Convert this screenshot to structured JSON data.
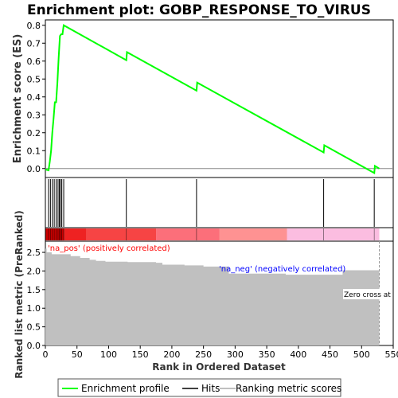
{
  "chart_data": {
    "type": "line",
    "title": "Enrichment plot: GOBP_RESPONSE_TO_VIRUS",
    "top_panel": {
      "ylabel": "Enrichment score (ES)",
      "ylim": [
        -0.05,
        0.83
      ],
      "yticks": [
        "0.0",
        "0.1",
        "0.2",
        "0.3",
        "0.4",
        "0.5",
        "0.6",
        "0.7",
        "0.8"
      ],
      "ytick_values": [
        0.0,
        0.1,
        0.2,
        0.3,
        0.4,
        0.5,
        0.6,
        0.7,
        0.8
      ],
      "series": [
        {
          "name": "Enrichment profile",
          "color": "#00ff00",
          "x": [
            0,
            5,
            7,
            9,
            11,
            13,
            15,
            17,
            19,
            21,
            23,
            25,
            27,
            29,
            128,
            129,
            239,
            240,
            440,
            441,
            520,
            521,
            528
          ],
          "y": [
            -0.005,
            -0.01,
            0.04,
            0.1,
            0.2,
            0.28,
            0.37,
            0.37,
            0.48,
            0.62,
            0.74,
            0.75,
            0.75,
            0.8,
            0.605,
            0.65,
            0.435,
            0.48,
            0.09,
            0.13,
            -0.025,
            0.015,
            0.0
          ]
        }
      ]
    },
    "hits_panel": {
      "hits": [
        5,
        8,
        11,
        14,
        17,
        20,
        22,
        24,
        26,
        29,
        128,
        239,
        440,
        520
      ]
    },
    "bottom_panel": {
      "ylabel": "Ranked list metric (PreRanked)",
      "xlabel": "Rank in Ordered Dataset",
      "ylim": [
        0,
        2.8
      ],
      "xlim": [
        0,
        550
      ],
      "yticks": [
        "0.0",
        "0.5",
        "1.0",
        "1.5",
        "2.0",
        "2.5"
      ],
      "ytick_values": [
        0.0,
        0.5,
        1.0,
        1.5,
        2.0,
        2.5
      ],
      "xticks": [
        "0",
        "50",
        "100",
        "150",
        "200",
        "250",
        "300",
        "350",
        "400",
        "450",
        "500",
        "550"
      ],
      "xtick_values": [
        0,
        50,
        100,
        150,
        200,
        250,
        300,
        350,
        400,
        450,
        500,
        550
      ],
      "metric_x": [
        0,
        2,
        10,
        30,
        40,
        55,
        70,
        80,
        95,
        130,
        175,
        185,
        220,
        250,
        290,
        380,
        440,
        470,
        528
      ],
      "metric_y": [
        2.6,
        2.5,
        2.45,
        2.45,
        2.4,
        2.35,
        2.3,
        2.27,
        2.25,
        2.24,
        2.22,
        2.17,
        2.15,
        2.12,
        1.93,
        1.9,
        1.9,
        2.02,
        2.02
      ],
      "fill_color": "#c0c0c0",
      "pos_label": "'na_pos' (positively correlated)",
      "pos_label_color": "#ff0000",
      "neg_label": "'na_neg' (negatively correlated)",
      "neg_label_color": "#0000ff",
      "zero_cross_label": "Zero cross at",
      "zero_cross_rank": 528
    },
    "colorbar_segments": [
      {
        "from": 0,
        "to": 30,
        "color": "#cc0000"
      },
      {
        "from": 30,
        "to": 65,
        "color": "#ee2222"
      },
      {
        "from": 65,
        "to": 175,
        "color": "#f64444"
      },
      {
        "from": 175,
        "to": 275,
        "color": "#fc6f7a"
      },
      {
        "from": 275,
        "to": 382,
        "color": "#fe9292"
      },
      {
        "from": 382,
        "to": 528,
        "color": "#fbbde0"
      }
    ],
    "legend": {
      "placement": "bottom",
      "items": [
        {
          "name": "Enrichment profile",
          "color": "#00ff00"
        },
        {
          "name": "Hits",
          "color": "#000000"
        },
        {
          "name": "Ranking metric scores",
          "color": "#c0c0c0"
        }
      ]
    }
  }
}
